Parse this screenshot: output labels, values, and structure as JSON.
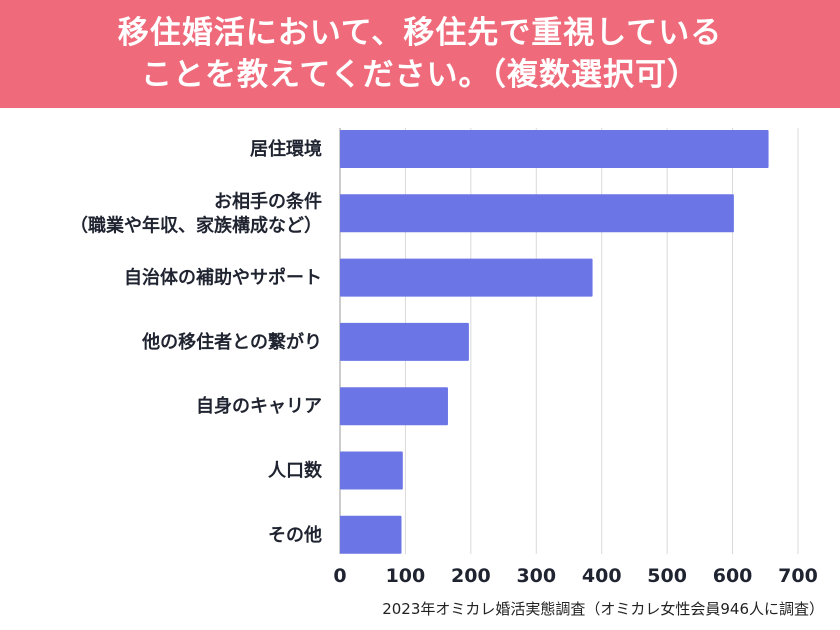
{
  "header": {
    "title_line1": "移住婚活において、移住先で重視している",
    "title_line2": "ことを教えてください。（複数選択可）"
  },
  "chart_data": {
    "type": "bar",
    "orientation": "horizontal",
    "categories": [
      [
        "居住環境"
      ],
      [
        "お相手の条件",
        "（職業や年収、家族構成など）"
      ],
      [
        "自治体の補助やサポート"
      ],
      [
        "他の移住者との繋がり"
      ],
      [
        "自身のキャリア"
      ],
      [
        "人口数"
      ],
      [
        "その他"
      ]
    ],
    "values": [
      655,
      602,
      386,
      197,
      165,
      96,
      94
    ],
    "x_ticks": [
      0,
      100,
      200,
      300,
      400,
      500,
      600,
      700
    ],
    "xlim": [
      0,
      700
    ],
    "grid": true,
    "bar_color": "#6b75e6",
    "title": "",
    "xlabel": "",
    "ylabel": ""
  },
  "footnote": "2023年オミカレ婚活実態調査（オミカレ女性会員946人に調査）",
  "colors": {
    "header_bg": "#ef6b7b",
    "bar": "#6b75e6",
    "grid": "#d9d9d9",
    "axis": "#999999"
  }
}
